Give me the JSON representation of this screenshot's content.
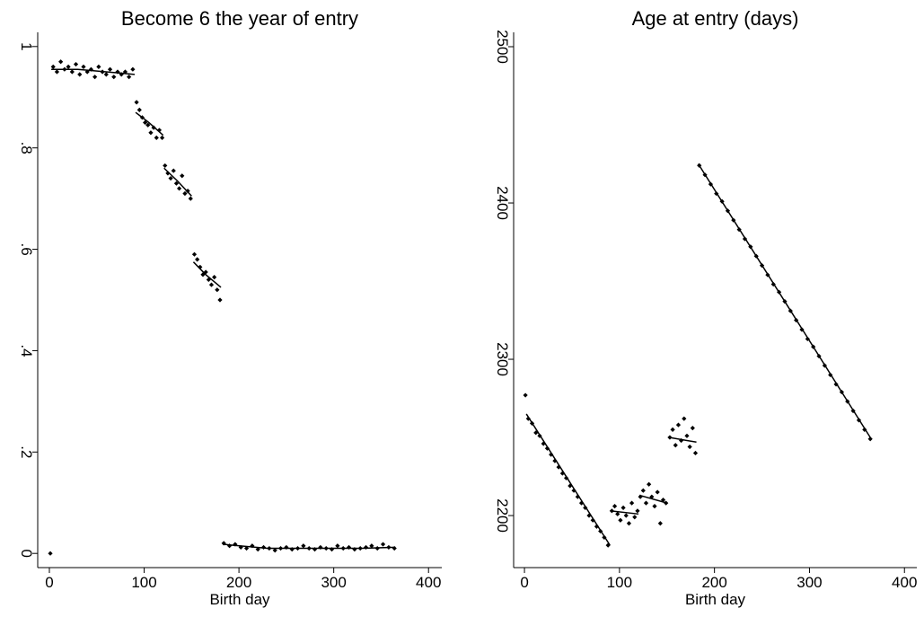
{
  "chart_data": [
    {
      "type": "scatter",
      "title": "Become 6 the year of entry",
      "x_label": "Birth day",
      "xlim": [
        -12.3,
        414
      ],
      "ylim": [
        -0.028,
        1.028
      ],
      "xticks": [
        0,
        100,
        200,
        300,
        400
      ],
      "yticks": [
        0,
        {
          "value": 0.2,
          "label": ".2"
        },
        {
          "value": 0.4,
          "label": ".4"
        },
        {
          "value": 0.6,
          "label": ".6"
        },
        {
          "value": 0.8,
          "label": ".8"
        },
        1
      ],
      "series": [
        {
          "mode": "markers",
          "color": "#000000",
          "x": [
            1,
            4,
            8,
            12,
            16,
            20,
            24,
            28,
            32,
            36,
            40,
            44,
            48,
            52,
            56,
            60,
            64,
            68,
            72,
            76,
            80,
            84,
            88,
            92,
            95,
            98,
            101,
            104,
            107,
            110,
            113,
            116,
            119,
            122,
            125,
            128,
            131,
            134,
            137,
            140,
            143,
            146,
            149,
            153,
            156,
            159,
            162,
            165,
            168,
            171,
            174,
            177,
            180,
            184,
            190,
            196,
            202,
            208,
            214,
            220,
            226,
            232,
            238,
            244,
            250,
            256,
            262,
            268,
            274,
            280,
            286,
            292,
            298,
            304,
            310,
            316,
            322,
            328,
            334,
            340,
            346,
            352,
            358,
            364
          ],
          "values": [
            0,
            0.96,
            0.95,
            0.97,
            0.955,
            0.96,
            0.95,
            0.965,
            0.945,
            0.96,
            0.95,
            0.955,
            0.94,
            0.96,
            0.95,
            0.945,
            0.955,
            0.94,
            0.95,
            0.945,
            0.95,
            0.94,
            0.955,
            0.89,
            0.875,
            0.86,
            0.85,
            0.845,
            0.83,
            0.84,
            0.82,
            0.835,
            0.82,
            0.765,
            0.75,
            0.74,
            0.755,
            0.73,
            0.72,
            0.745,
            0.71,
            0.715,
            0.7,
            0.59,
            0.58,
            0.565,
            0.55,
            0.555,
            0.54,
            0.53,
            0.545,
            0.52,
            0.5,
            0.02,
            0.015,
            0.018,
            0.012,
            0.01,
            0.015,
            0.008,
            0.012,
            0.01,
            0.006,
            0.01,
            0.012,
            0.008,
            0.01,
            0.015,
            0.01,
            0.008,
            0.012,
            0.01,
            0.008,
            0.015,
            0.01,
            0.012,
            0.008,
            0.01,
            0.012,
            0.015,
            0.01,
            0.018,
            0.012,
            0.01
          ]
        },
        {
          "mode": "line",
          "color": "#000000",
          "x": [
            2,
            30,
            60,
            90,
            null,
            91,
            105,
            120,
            null,
            121,
            135,
            150,
            null,
            152,
            165,
            181,
            null,
            183,
            230,
            280,
            330,
            365
          ],
          "values": [
            0.955,
            0.955,
            0.95,
            0.945,
            null,
            0.87,
            0.85,
            0.825,
            null,
            0.76,
            0.735,
            0.705,
            null,
            0.575,
            0.55,
            0.525,
            null,
            0.018,
            0.01,
            0.01,
            0.01,
            0.012
          ]
        }
      ]
    },
    {
      "type": "scatter",
      "title": "Age at entry (days)",
      "x_label": "Birth day",
      "xlim": [
        -11.4,
        413
      ],
      "ylim": [
        2166.7,
        2509.2
      ],
      "xticks": [
        0,
        100,
        200,
        300,
        400
      ],
      "yticks": [
        2200,
        2300,
        2400,
        2500
      ],
      "series": [
        {
          "mode": "markers",
          "color": "#000000",
          "x": [
            1,
            4,
            8,
            12,
            16,
            20,
            24,
            28,
            32,
            36,
            40,
            44,
            48,
            52,
            56,
            60,
            64,
            68,
            72,
            76,
            80,
            84,
            88,
            92,
            95,
            98,
            101,
            104,
            107,
            110,
            113,
            116,
            119,
            122,
            125,
            128,
            131,
            134,
            137,
            140,
            143,
            146,
            149,
            153,
            156,
            159,
            162,
            165,
            168,
            171,
            174,
            177,
            180,
            184,
            190,
            196,
            202,
            208,
            214,
            220,
            226,
            232,
            238,
            244,
            250,
            256,
            262,
            268,
            274,
            280,
            286,
            292,
            298,
            304,
            310,
            316,
            322,
            328,
            334,
            340,
            346,
            352,
            358,
            364
          ],
          "values": [
            2277,
            2262,
            2259,
            2253,
            2251,
            2246,
            2243,
            2239,
            2235,
            2231,
            2227,
            2224,
            2219,
            2216,
            2212,
            2208,
            2205,
            2200,
            2197,
            2193,
            2190,
            2186,
            2181,
            2203,
            2206,
            2201,
            2197,
            2205,
            2200,
            2195,
            2208,
            2199,
            2203,
            2212,
            2216,
            2208,
            2220,
            2212,
            2206,
            2215,
            2195,
            2210,
            2208,
            2250,
            2255,
            2245,
            2258,
            2248,
            2262,
            2251,
            2244,
            2256,
            2240,
            2424,
            2418,
            2412,
            2406,
            2401,
            2395,
            2389,
            2383,
            2377,
            2372,
            2366,
            2360,
            2354,
            2348,
            2343,
            2337,
            2331,
            2325,
            2319,
            2313,
            2308,
            2302,
            2296,
            2290,
            2284,
            2279,
            2273,
            2267,
            2261,
            2255,
            2249
          ]
        },
        {
          "mode": "line",
          "color": "#000000",
          "x": [
            2,
            90,
            null,
            91,
            120,
            null,
            121,
            150,
            null,
            152,
            181,
            null,
            183,
            365
          ],
          "values": [
            2265,
            2181,
            null,
            2203,
            2201,
            null,
            2213,
            2208,
            null,
            2250,
            2247,
            null,
            2425,
            2249
          ]
        }
      ]
    }
  ]
}
